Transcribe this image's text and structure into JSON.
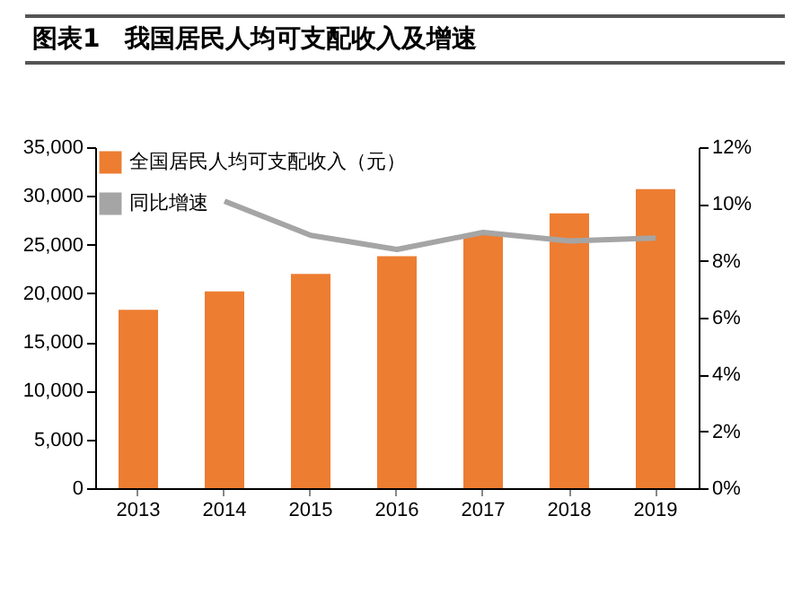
{
  "chart_data": {
    "type": "bar",
    "title": "图表1　我国居民人均可支配收入及增速",
    "categories": [
      "2013",
      "2014",
      "2015",
      "2016",
      "2017",
      "2018",
      "2019"
    ],
    "series": [
      {
        "name": "全国居民人均可支配收入（元）",
        "color": "#ed7d31",
        "values": [
          18300,
          20200,
          22000,
          23800,
          26000,
          28200,
          30700
        ]
      },
      {
        "name": "同比增速",
        "type": "line",
        "axis": "y2",
        "color": "#a5a5a5",
        "values": [
          null,
          10.1,
          8.9,
          8.4,
          9.0,
          8.7,
          8.8
        ]
      }
    ],
    "ylim": [
      0,
      35000
    ],
    "yticks": [
      {
        "value": 0,
        "label": "0"
      },
      {
        "value": 5000,
        "label": "5,000"
      },
      {
        "value": 10000,
        "label": "10,000"
      },
      {
        "value": 15000,
        "label": "15,000"
      },
      {
        "value": 20000,
        "label": "20,000"
      },
      {
        "value": 25000,
        "label": "25,000"
      },
      {
        "value": 30000,
        "label": "30,000"
      },
      {
        "value": 35000,
        "label": "35,000"
      }
    ],
    "y2lim": [
      0,
      12
    ],
    "y2ticks": [
      {
        "value": 0,
        "label": "0%"
      },
      {
        "value": 2,
        "label": "2%"
      },
      {
        "value": 4,
        "label": "4%"
      },
      {
        "value": 6,
        "label": "6%"
      },
      {
        "value": 8,
        "label": "8%"
      },
      {
        "value": 10,
        "label": "10%"
      },
      {
        "value": 12,
        "label": "12%"
      }
    ],
    "legend": "top left",
    "grid": false,
    "marker": "none",
    "line_style": "solid"
  }
}
